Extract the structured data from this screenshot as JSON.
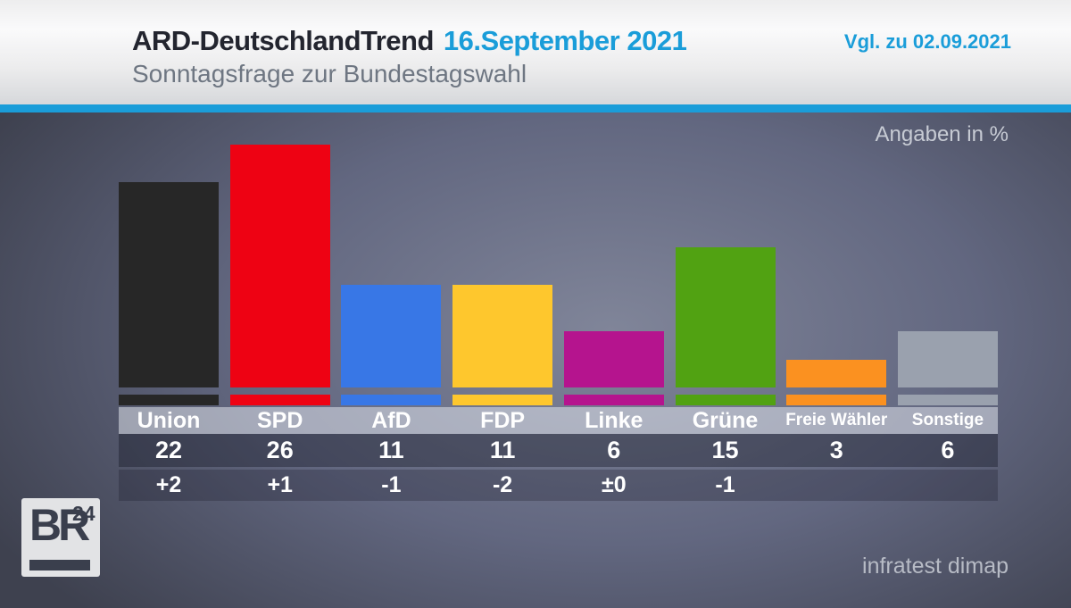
{
  "header": {
    "title": "ARD-DeutschlandTrend",
    "date": "16.September 2021",
    "subtitle": "Sonntagsfrage zur Bundestagswahl",
    "comparison_note": "Vgl. zu 02.09.2021",
    "accent_color": "#1a9dd9"
  },
  "chart_area": {
    "unit_note": "Angaben in %",
    "source": "infratest dimap"
  },
  "logo": {
    "text": "BR",
    "superscript": "24"
  },
  "chart_data": {
    "type": "bar",
    "title": "Sonntagsfrage zur Bundestagswahl",
    "unit": "Angaben in %",
    "categories": [
      "Union",
      "SPD",
      "AfD",
      "FDP",
      "Linke",
      "Grüne",
      "Freie Wähler",
      "Sonstige"
    ],
    "values": [
      22,
      26,
      11,
      11,
      6,
      15,
      3,
      6
    ],
    "changes": [
      "+2",
      "+1",
      "-1",
      "-2",
      "±0",
      "-1",
      "",
      ""
    ],
    "changes_vs": "02.09.2021",
    "colors": [
      "#272727",
      "#ee0213",
      "#3877e6",
      "#fec72d",
      "#b5148e",
      "#51a212",
      "#fb9120",
      "#9aa1ae"
    ],
    "ylim": [
      0,
      28
    ],
    "grid": false,
    "legend": "none",
    "source": "infratest dimap"
  }
}
